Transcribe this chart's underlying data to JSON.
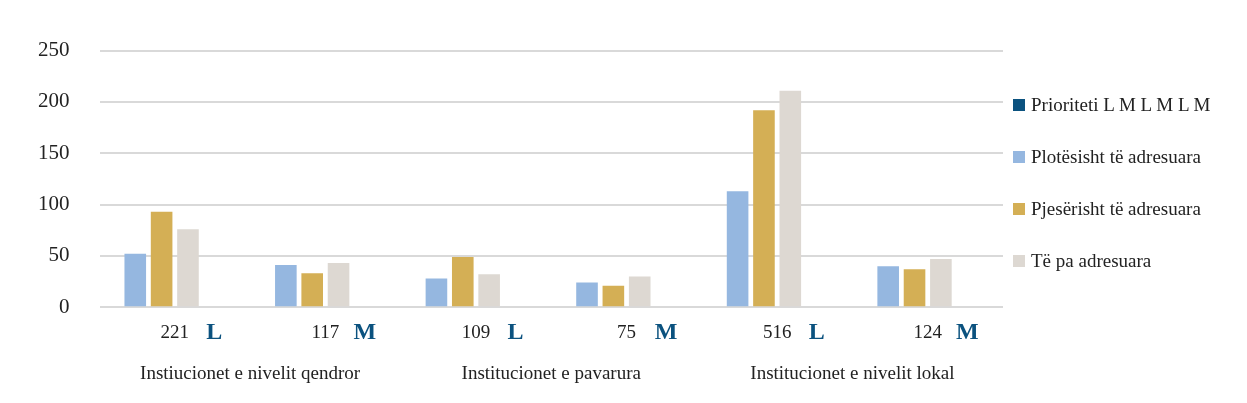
{
  "chart_data": {
    "type": "bar",
    "categories": [
      "221",
      "117",
      "109",
      "75",
      "516",
      "124"
    ],
    "series": [
      {
        "name": "Prioriteti L M L M L M",
        "color": "#0b527f",
        "values": [
          0,
          0,
          0,
          0,
          0,
          0
        ],
        "value_labels": [
          "L",
          "M",
          "L",
          "M",
          "L",
          "M"
        ]
      },
      {
        "name": "Plotësisht të adresuara",
        "color": "#95b7e0",
        "values": [
          52,
          41,
          28,
          24,
          113,
          40
        ]
      },
      {
        "name": "Pjesërisht të adresuara",
        "color": "#d4af55",
        "values": [
          93,
          33,
          49,
          21,
          192,
          37
        ]
      },
      {
        "name": "Të pa adresuara",
        "color": "#ddd8d2",
        "values": [
          76,
          43,
          32,
          30,
          211,
          47
        ]
      }
    ],
    "ylim": [
      0,
      250
    ],
    "yticks": [
      0,
      50,
      100,
      150,
      200,
      250
    ],
    "grid": "y",
    "legend": "right",
    "annotations": [
      "Instiucionet e nivelit qendror",
      "Institucionet e pavarura",
      "Institucionet e nivelit lokal"
    ]
  }
}
